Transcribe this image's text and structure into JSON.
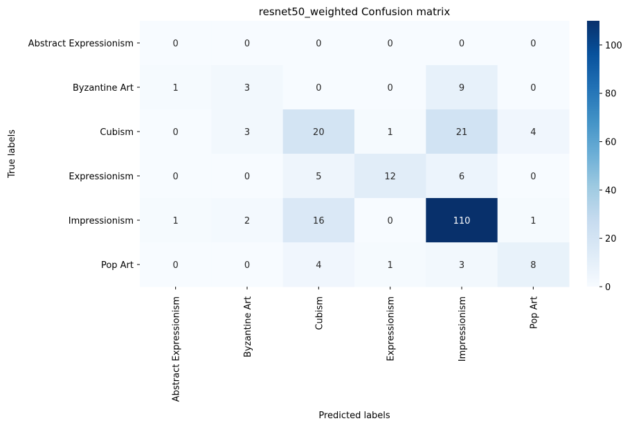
{
  "chart_data": {
    "type": "heatmap",
    "title": "resnet50_weighted Confusion matrix",
    "xlabel": "Predicted labels",
    "ylabel": "True labels",
    "x_categories": [
      "Abstract Expressionism",
      "Byzantine Art",
      "Cubism",
      "Expressionism",
      "Impressionism",
      "Pop Art"
    ],
    "y_categories": [
      "Abstract Expressionism",
      "Byzantine Art",
      "Cubism",
      "Expressionism",
      "Impressionism",
      "Pop Art"
    ],
    "values": [
      [
        0,
        0,
        0,
        0,
        0,
        0
      ],
      [
        1,
        3,
        0,
        0,
        9,
        0
      ],
      [
        0,
        3,
        20,
        1,
        21,
        4
      ],
      [
        0,
        0,
        5,
        12,
        6,
        0
      ],
      [
        1,
        2,
        16,
        0,
        110,
        1
      ],
      [
        0,
        0,
        4,
        1,
        3,
        8
      ]
    ],
    "colormap": "Blues",
    "colorbar": {
      "range": [
        0,
        110
      ],
      "ticks": [
        0,
        20,
        40,
        60,
        80,
        100
      ]
    },
    "colors": {
      "low": "#f7fbff",
      "high": "#08306b"
    }
  }
}
